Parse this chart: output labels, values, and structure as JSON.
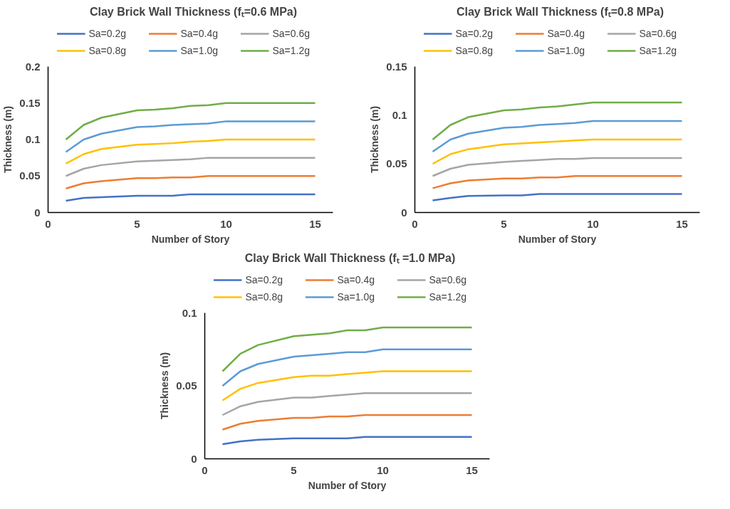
{
  "chart_data": [
    {
      "type": "line",
      "title": "Clay Brick Wall Thickness (fₜ=0.6 MPa)",
      "xlabel": "Number of Story",
      "ylabel": "Thickness (m)",
      "x": [
        1,
        2,
        3,
        5,
        6,
        7,
        8,
        9,
        10,
        15
      ],
      "xlim": [
        0,
        16
      ],
      "xticks": [
        0,
        5,
        10,
        15
      ],
      "ylim": [
        0,
        0.2
      ],
      "yticks": [
        0,
        0.05,
        0.1,
        0.15,
        0.2
      ],
      "grid": false,
      "legend": "top",
      "marker": "none",
      "line_style": "solid",
      "series": [
        {
          "name": "Sa=0.2g",
          "color": "#4472c4",
          "values": [
            0.016,
            0.02,
            0.021,
            0.023,
            0.023,
            0.023,
            0.025,
            0.025,
            0.025,
            0.025
          ]
        },
        {
          "name": "Sa=0.4g",
          "color": "#ed7d31",
          "values": [
            0.033,
            0.04,
            0.043,
            0.047,
            0.047,
            0.048,
            0.048,
            0.05,
            0.05,
            0.05
          ]
        },
        {
          "name": "Sa=0.6g",
          "color": "#a5a5a5",
          "values": [
            0.05,
            0.06,
            0.065,
            0.07,
            0.071,
            0.072,
            0.073,
            0.075,
            0.075,
            0.075
          ]
        },
        {
          "name": "Sa=0.8g",
          "color": "#ffc000",
          "values": [
            0.067,
            0.08,
            0.087,
            0.093,
            0.094,
            0.095,
            0.097,
            0.098,
            0.1,
            0.1
          ]
        },
        {
          "name": "Sa=1.0g",
          "color": "#5b9bd5",
          "values": [
            0.083,
            0.1,
            0.108,
            0.117,
            0.118,
            0.12,
            0.121,
            0.122,
            0.125,
            0.125
          ]
        },
        {
          "name": "Sa=1.2g",
          "color": "#70ad47",
          "values": [
            0.1,
            0.12,
            0.13,
            0.14,
            0.141,
            0.143,
            0.146,
            0.147,
            0.15,
            0.15
          ]
        }
      ]
    },
    {
      "type": "line",
      "title": "Clay Brick Wall Thickness (fₜ=0.8 MPa)",
      "xlabel": "Number of Story",
      "ylabel": "Thickness (m)",
      "x": [
        1,
        2,
        3,
        5,
        6,
        7,
        8,
        9,
        10,
        15
      ],
      "xlim": [
        0,
        16
      ],
      "xticks": [
        0,
        5,
        10,
        15
      ],
      "ylim": [
        0,
        0.15
      ],
      "yticks": [
        0,
        0.05,
        0.1,
        0.15
      ],
      "grid": false,
      "legend": "top",
      "marker": "none",
      "line_style": "solid",
      "series": [
        {
          "name": "Sa=0.2g",
          "color": "#4472c4",
          "values": [
            0.0125,
            0.015,
            0.017,
            0.0175,
            0.0175,
            0.019,
            0.019,
            0.019,
            0.019,
            0.019
          ]
        },
        {
          "name": "Sa=0.4g",
          "color": "#ed7d31",
          "values": [
            0.025,
            0.03,
            0.033,
            0.035,
            0.035,
            0.036,
            0.036,
            0.0375,
            0.0375,
            0.0375
          ]
        },
        {
          "name": "Sa=0.6g",
          "color": "#a5a5a5",
          "values": [
            0.0375,
            0.045,
            0.049,
            0.052,
            0.053,
            0.054,
            0.055,
            0.055,
            0.056,
            0.056
          ]
        },
        {
          "name": "Sa=0.8g",
          "color": "#ffc000",
          "values": [
            0.05,
            0.06,
            0.065,
            0.07,
            0.071,
            0.072,
            0.073,
            0.074,
            0.075,
            0.075
          ]
        },
        {
          "name": "Sa=1.0g",
          "color": "#5b9bd5",
          "values": [
            0.0625,
            0.075,
            0.081,
            0.087,
            0.088,
            0.09,
            0.091,
            0.092,
            0.094,
            0.094
          ]
        },
        {
          "name": "Sa=1.2g",
          "color": "#70ad47",
          "values": [
            0.075,
            0.09,
            0.098,
            0.105,
            0.106,
            0.108,
            0.109,
            0.111,
            0.113,
            0.113
          ]
        }
      ]
    },
    {
      "type": "line",
      "title": "Clay Brick Wall Thickness (fₜ =1.0 MPa)",
      "xlabel": "Number of Story",
      "ylabel": "Thickness (m)",
      "x": [
        1,
        2,
        3,
        5,
        6,
        7,
        8,
        9,
        10,
        15
      ],
      "xlim": [
        0,
        16
      ],
      "xticks": [
        0,
        5,
        10,
        15
      ],
      "ylim": [
        0,
        0.1
      ],
      "yticks": [
        0,
        0.05,
        0.1
      ],
      "grid": false,
      "legend": "top",
      "marker": "none",
      "line_style": "solid",
      "series": [
        {
          "name": "Sa=0.2g",
          "color": "#4472c4",
          "values": [
            0.01,
            0.012,
            0.013,
            0.014,
            0.014,
            0.014,
            0.014,
            0.015,
            0.015,
            0.015
          ]
        },
        {
          "name": "Sa=0.4g",
          "color": "#ed7d31",
          "values": [
            0.02,
            0.024,
            0.026,
            0.028,
            0.028,
            0.029,
            0.029,
            0.03,
            0.03,
            0.03
          ]
        },
        {
          "name": "Sa=0.6g",
          "color": "#a5a5a5",
          "values": [
            0.03,
            0.036,
            0.039,
            0.042,
            0.042,
            0.043,
            0.044,
            0.045,
            0.045,
            0.045
          ]
        },
        {
          "name": "Sa=0.8g",
          "color": "#ffc000",
          "values": [
            0.04,
            0.048,
            0.052,
            0.056,
            0.057,
            0.057,
            0.058,
            0.059,
            0.06,
            0.06
          ]
        },
        {
          "name": "Sa=1.0g",
          "color": "#5b9bd5",
          "values": [
            0.05,
            0.06,
            0.065,
            0.07,
            0.071,
            0.072,
            0.073,
            0.073,
            0.075,
            0.075
          ]
        },
        {
          "name": "Sa=1.2g",
          "color": "#70ad47",
          "values": [
            0.06,
            0.072,
            0.078,
            0.084,
            0.085,
            0.086,
            0.088,
            0.088,
            0.09,
            0.09
          ]
        }
      ]
    }
  ]
}
